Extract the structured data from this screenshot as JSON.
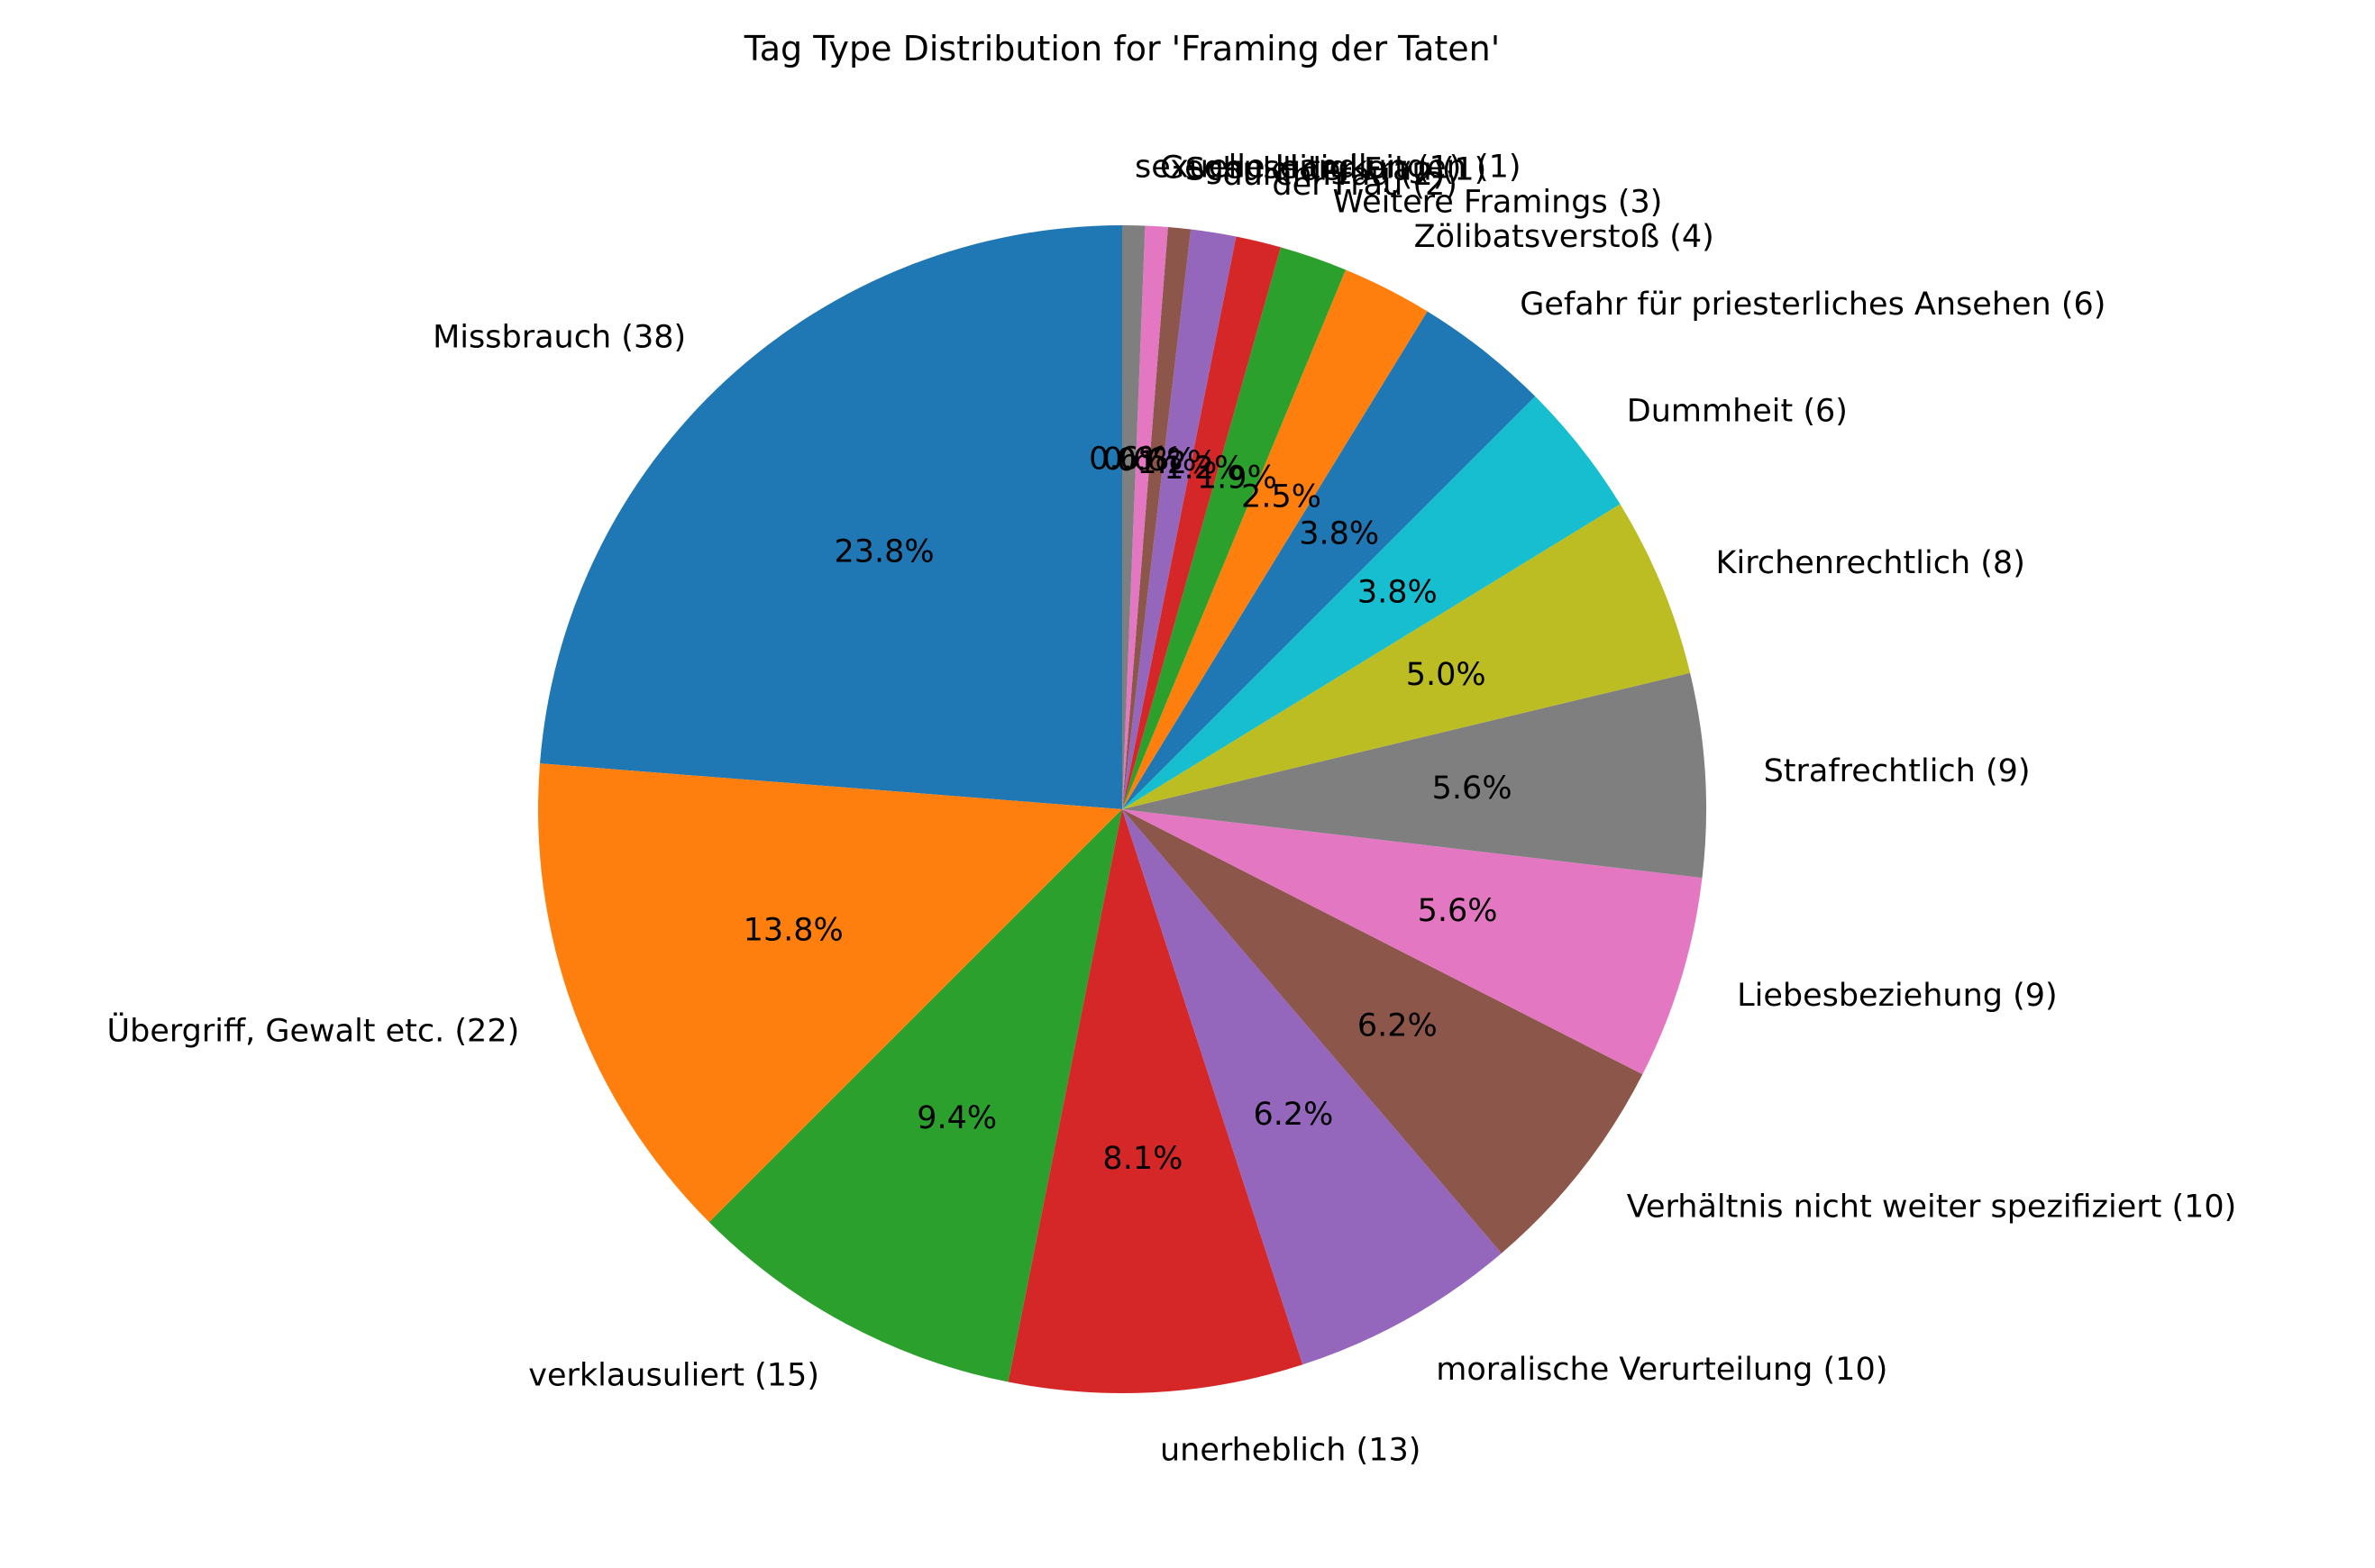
{
  "chart_data": {
    "type": "pie",
    "title": "Tag Type Distribution for 'Framing der Taten'",
    "start_angle_deg": 90,
    "direction": "counterclockwise",
    "label_format": "{name} ({count})",
    "slices": [
      {
        "name": "Missbrauch",
        "count": 38,
        "pct_label": "23.8%",
        "color": "#1f77b4"
      },
      {
        "name": "Übergriff, Gewalt etc.",
        "count": 22,
        "pct_label": "13.8%",
        "color": "#ff7f0e"
      },
      {
        "name": "verklausuliert",
        "count": 15,
        "pct_label": "9.4%",
        "color": "#2ca02c"
      },
      {
        "name": "unerheblich",
        "count": 13,
        "pct_label": "8.1%",
        "color": "#d62728"
      },
      {
        "name": "moralische Verurteilung",
        "count": 10,
        "pct_label": "6.2%",
        "color": "#9467bd"
      },
      {
        "name": "Verhältnis nicht weiter spezifiziert",
        "count": 10,
        "pct_label": "6.2%",
        "color": "#8c564b"
      },
      {
        "name": "Liebesbeziehung",
        "count": 9,
        "pct_label": "5.6%",
        "color": "#e377c2"
      },
      {
        "name": "Strafrechtlich",
        "count": 9,
        "pct_label": "5.6%",
        "color": "#7f7f7f"
      },
      {
        "name": "Kirchenrechtlich",
        "count": 8,
        "pct_label": "5.0%",
        "color": "#bcbd22"
      },
      {
        "name": "Dummheit",
        "count": 6,
        "pct_label": "3.8%",
        "color": "#17becf"
      },
      {
        "name": "Gefahr für priesterliches Ansehen",
        "count": 6,
        "pct_label": "3.8%",
        "color": "#1f77b4"
      },
      {
        "name": "Zölibatsverstoß",
        "count": 4,
        "pct_label": "2.5%",
        "color": "#ff7f0e"
      },
      {
        "name": "Weitere Framings",
        "count": 3,
        "pct_label": "1.9%",
        "color": "#2ca02c"
      },
      {
        "name": "der Frau",
        "count": 2,
        "pct_label": "1.2%",
        "color": "#d62728"
      },
      {
        "name": "durch Frau",
        "count": 2,
        "pct_label": "1.2%",
        "color": "#9467bd"
      },
      {
        "name": "Schuld der Frau",
        "count": 1,
        "pct_label": "0.6%",
        "color": "#8c564b"
      },
      {
        "name": "Gegenseitigkeit",
        "count": 1,
        "pct_label": "0.6%",
        "color": "#e377c2"
      },
      {
        "name": "sexuelle Handlungen",
        "count": 1,
        "pct_label": "0.6%",
        "color": "#7f7f7f"
      }
    ]
  }
}
